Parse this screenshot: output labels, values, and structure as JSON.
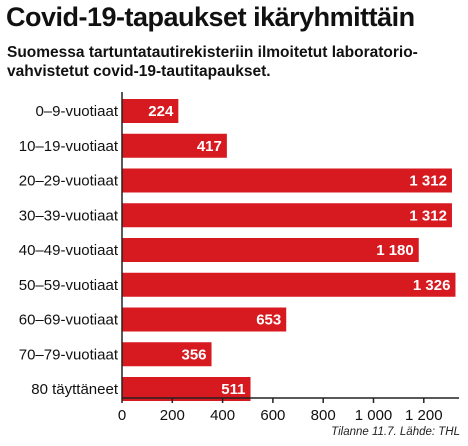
{
  "header": {
    "title": "Covid-19-tapaukset ikäryhmittäin",
    "subtitle": "Suomessa tartuntatautirekisteriin ilmoitetut laboratorio-vahvistetut covid-19-tautitapaukset."
  },
  "source": "Tilanne 11.7. Lähde: THL",
  "colors": {
    "bar": "#d71920",
    "axis": "#222222",
    "text": "#111111"
  },
  "chart_data": {
    "type": "bar",
    "orientation": "horizontal",
    "categories": [
      "0–9-vuotiaat",
      "10–19-vuotiaat",
      "20–29-vuotiaat",
      "30–39-vuotiaat",
      "40–49-vuotiaat",
      "50–59-vuotiaat",
      "60–69-vuotiaat",
      "70–79-vuotiaat",
      "80 täyttäneet"
    ],
    "values": [
      224,
      417,
      1312,
      1312,
      1180,
      1326,
      653,
      356,
      511
    ],
    "value_labels": [
      "224",
      "417",
      "1 312",
      "1 312",
      "1 180",
      "1 326",
      "653",
      "356",
      "511"
    ],
    "xticks": [
      0,
      200,
      400,
      600,
      800,
      1000,
      1200
    ],
    "xtick_labels": [
      "0",
      "200",
      "400",
      "600",
      "800",
      "1 000",
      "1 200"
    ],
    "xlim": [
      0,
      1340
    ],
    "grid": false
  }
}
